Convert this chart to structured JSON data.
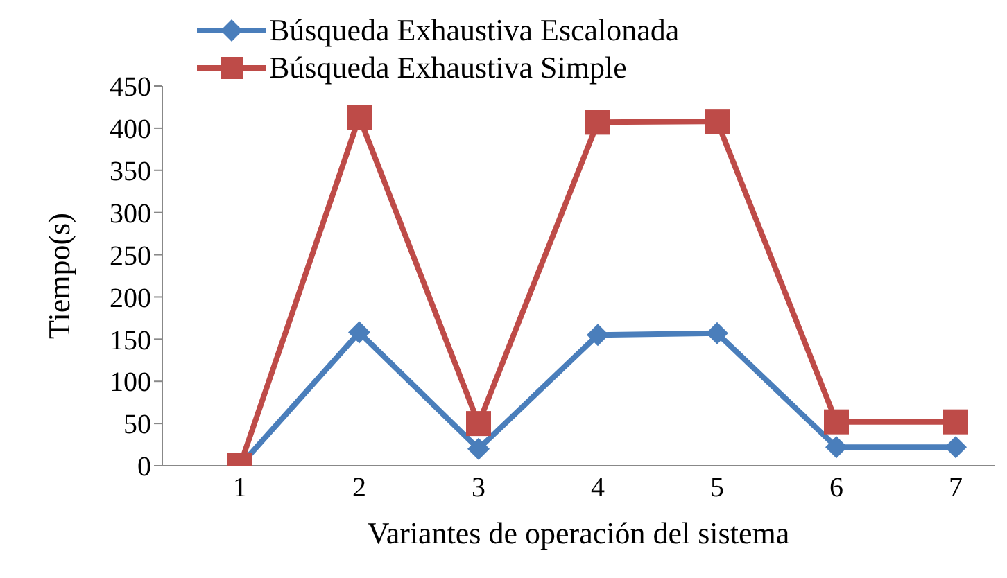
{
  "chart_data": {
    "type": "line",
    "xlabel": "Variantes de operación del sistema",
    "ylabel": "Tiempo(s)",
    "categories": [
      "1",
      "2",
      "3",
      "4",
      "5",
      "6",
      "7"
    ],
    "series": [
      {
        "name": "Búsqueda Exhaustiva Escalonada",
        "color": "#4a7ebb",
        "marker": "diamond",
        "values": [
          0,
          158,
          20,
          155,
          157,
          22,
          22
        ]
      },
      {
        "name": "Búsqueda Exhaustiva Simple",
        "color": "#be4b48",
        "marker": "square",
        "values": [
          0,
          413,
          50,
          407,
          408,
          52,
          52
        ]
      }
    ],
    "ylim": [
      0,
      450
    ],
    "yticks": [
      0,
      50,
      100,
      150,
      200,
      250,
      300,
      350,
      400,
      450
    ],
    "grid": false,
    "legend": "top",
    "line_style": "solid"
  }
}
